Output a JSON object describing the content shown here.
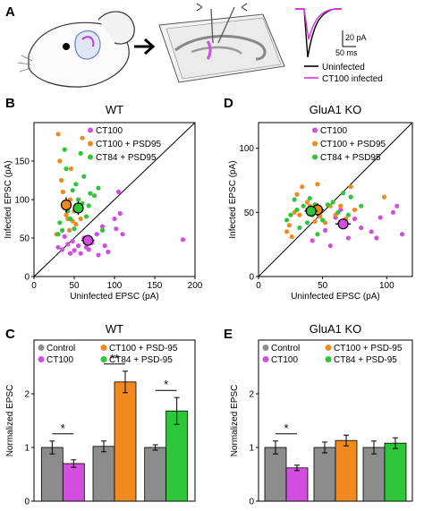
{
  "colors": {
    "ct100": "#d24ee0",
    "ct100_psd95": "#f08a1e",
    "ct84_psd95": "#2ec73a",
    "control": "#8c8c8c",
    "uninfected_trace": "#000000",
    "infected_trace": "#e030e0"
  },
  "panel_a": {
    "letter": "A",
    "arrow_icon": "right-arrow",
    "scale_pa": "20 pA",
    "scale_ms": "50 ms",
    "legend": [
      "Uninfected",
      "CT100 infected"
    ]
  },
  "panel_b": {
    "letter": "B"
  },
  "panel_c": {
    "letter": "C"
  },
  "panel_d": {
    "letter": "D"
  },
  "panel_e": {
    "letter": "E"
  },
  "chart_data": [
    {
      "panel": "B",
      "type": "scatter",
      "title": "WT",
      "xlabel": "Uninfected EPSC (pA)",
      "ylabel": "Infected EPSC (pA)",
      "xlim": [
        0,
        200
      ],
      "ylim": [
        0,
        200
      ],
      "xticks": [
        0,
        50,
        100,
        150,
        200
      ],
      "yticks": [
        0,
        50,
        100,
        150
      ],
      "legend": [
        "CT100",
        "CT100 + PSD95",
        "CT84 + PSD95"
      ],
      "legend_position": "top-left",
      "identity_line": true,
      "series": [
        {
          "name": "CT100",
          "colorKey": "ct100",
          "points": [
            [
              30,
              38
            ],
            [
              35,
              35
            ],
            [
              38,
              52
            ],
            [
              42,
              42
            ],
            [
              45,
              30
            ],
            [
              48,
              46
            ],
            [
              50,
              34
            ],
            [
              55,
              40
            ],
            [
              58,
              30
            ],
            [
              62,
              50
            ],
            [
              65,
              38
            ],
            [
              68,
              35
            ],
            [
              72,
              44
            ],
            [
              78,
              55
            ],
            [
              80,
              28
            ],
            [
              85,
              65
            ],
            [
              88,
              40
            ],
            [
              92,
              32
            ],
            [
              100,
              75
            ],
            [
              102,
              62
            ],
            [
              105,
              110
            ],
            [
              107,
              82
            ],
            [
              110,
              55
            ],
            [
              185,
              48
            ]
          ],
          "mean": [
            67,
            47
          ],
          "xerr": 8,
          "yerr": 4
        },
        {
          "name": "CT100 + PSD95",
          "colorKey": "ct100_psd95",
          "points": [
            [
              28,
              55
            ],
            [
              30,
              185
            ],
            [
              32,
              150
            ],
            [
              34,
              125
            ],
            [
              36,
              110
            ],
            [
              38,
              92
            ],
            [
              40,
              80
            ],
            [
              42,
              75
            ],
            [
              44,
              60
            ],
            [
              45,
              100
            ],
            [
              46,
              140
            ],
            [
              48,
              72
            ],
            [
              50,
              85
            ],
            [
              52,
              68
            ],
            [
              55,
              92
            ],
            [
              58,
              75
            ],
            [
              60,
              180
            ]
          ],
          "mean": [
            40,
            93
          ],
          "xerr": 5,
          "yerr": 10
        },
        {
          "name": "CT84 + PSD95",
          "colorKey": "ct84_psd95",
          "points": [
            [
              30,
              55
            ],
            [
              32,
              70
            ],
            [
              35,
              60
            ],
            [
              38,
              165
            ],
            [
              40,
              140
            ],
            [
              42,
              85
            ],
            [
              45,
              75
            ],
            [
              48,
              112
            ],
            [
              50,
              62
            ],
            [
              52,
              120
            ],
            [
              55,
              100
            ],
            [
              58,
              160
            ],
            [
              60,
              95
            ],
            [
              62,
              130
            ],
            [
              65,
              78
            ],
            [
              68,
              92
            ],
            [
              70,
              108
            ],
            [
              75,
              105
            ],
            [
              80,
              115
            ],
            [
              85,
              60
            ]
          ],
          "mean": [
            55,
            89
          ],
          "xerr": 5,
          "yerr": 9
        }
      ]
    },
    {
      "panel": "D",
      "type": "scatter",
      "title": "GluA1 KO",
      "xlabel": "Uninfected EPSC (pA)",
      "ylabel": "Infected EPSC (pA)",
      "xlim": [
        0,
        120
      ],
      "ylim": [
        0,
        120
      ],
      "xticks": [
        0,
        50,
        100
      ],
      "yticks": [
        0,
        50,
        100
      ],
      "legend": [
        "CT100",
        "CT100 + PSD95",
        "CT84 + PSD95"
      ],
      "legend_position": "top-left",
      "identity_line": true,
      "series": [
        {
          "name": "CT100",
          "colorKey": "ct100",
          "points": [
            [
              32,
              48
            ],
            [
              38,
              52
            ],
            [
              42,
              28
            ],
            [
              52,
              36
            ],
            [
              56,
              24
            ],
            [
              60,
              46
            ],
            [
              64,
              52
            ],
            [
              70,
              30
            ],
            [
              75,
              45
            ],
            [
              80,
              38
            ],
            [
              88,
              35
            ],
            [
              92,
              30
            ],
            [
              95,
              46
            ],
            [
              105,
              50
            ],
            [
              108,
              55
            ],
            [
              112,
              33
            ]
          ],
          "mean": [
            66,
            41
          ],
          "xerr": 6,
          "yerr": 3
        },
        {
          "name": "CT100 + PSD95",
          "colorKey": "ct100_psd95",
          "points": [
            [
              22,
              35
            ],
            [
              24,
              40
            ],
            [
              26,
              31
            ],
            [
              28,
              50
            ],
            [
              30,
              64
            ],
            [
              32,
              48
            ],
            [
              34,
              70
            ],
            [
              38,
              58
            ],
            [
              40,
              55
            ],
            [
              44,
              43
            ],
            [
              46,
              72
            ],
            [
              48,
              47
            ],
            [
              52,
              42
            ],
            [
              56,
              55
            ],
            [
              60,
              48
            ],
            [
              64,
              55
            ],
            [
              68,
              45
            ],
            [
              72,
              70
            ],
            [
              75,
              52
            ],
            [
              98,
              62
            ]
          ],
          "mean": [
            46,
            52
          ],
          "xerr": 5,
          "yerr": 5
        },
        {
          "name": "CT84 + PSD95",
          "colorKey": "ct84_psd95",
          "points": [
            [
              22,
              44
            ],
            [
              25,
              48
            ],
            [
              28,
              60
            ],
            [
              30,
              52
            ],
            [
              32,
              38
            ],
            [
              35,
              55
            ],
            [
              38,
              42
            ],
            [
              40,
              61
            ],
            [
              42,
              48
            ],
            [
              44,
              56
            ],
            [
              46,
              33
            ],
            [
              48,
              50
            ],
            [
              50,
              44
            ],
            [
              54,
              56
            ],
            [
              58,
              58
            ],
            [
              62,
              50
            ],
            [
              66,
              65
            ],
            [
              70,
              48
            ],
            [
              72,
              62
            ],
            [
              80,
              55
            ]
          ],
          "mean": [
            41,
            51
          ],
          "xerr": 5,
          "yerr": 4
        }
      ]
    },
    {
      "panel": "C",
      "type": "bar",
      "title": "WT",
      "ylabel": "Normalized EPSC",
      "ylim": [
        0,
        3
      ],
      "yticks": [
        0,
        1,
        2
      ],
      "legend": [
        "Control",
        "CT100",
        "CT100 + PSD-95",
        "CT84 + PSD-95"
      ],
      "groups": [
        {
          "bars": [
            {
              "name": "Control",
              "colorKey": "control",
              "value": 1.0,
              "err": 0.12
            },
            {
              "name": "CT100",
              "colorKey": "ct100",
              "value": 0.7,
              "err": 0.07
            }
          ],
          "significance": "*"
        },
        {
          "bars": [
            {
              "name": "Control",
              "colorKey": "control",
              "value": 1.02,
              "err": 0.1
            },
            {
              "name": "CT100 + PSD-95",
              "colorKey": "ct100_psd95",
              "value": 2.22,
              "err": 0.2
            }
          ],
          "significance": "**"
        },
        {
          "bars": [
            {
              "name": "Control",
              "colorKey": "control",
              "value": 1.0,
              "err": 0.05
            },
            {
              "name": "CT84 + PSD-95",
              "colorKey": "ct84_psd95",
              "value": 1.68,
              "err": 0.25
            }
          ],
          "significance": "*"
        }
      ]
    },
    {
      "panel": "E",
      "type": "bar",
      "title": "GluA1 KO",
      "ylabel": "Normalized EPSC",
      "ylim": [
        0,
        3
      ],
      "yticks": [
        0,
        1,
        2
      ],
      "legend": [
        "Control",
        "CT100",
        "CT100 + PSD-95",
        "CT84 + PSD-95"
      ],
      "groups": [
        {
          "bars": [
            {
              "name": "Control",
              "colorKey": "control",
              "value": 1.0,
              "err": 0.12
            },
            {
              "name": "CT100",
              "colorKey": "ct100",
              "value": 0.62,
              "err": 0.05
            }
          ],
          "significance": "*"
        },
        {
          "bars": [
            {
              "name": "Control",
              "colorKey": "control",
              "value": 1.0,
              "err": 0.1
            },
            {
              "name": "CT100 + PSD-95",
              "colorKey": "ct100_psd95",
              "value": 1.13,
              "err": 0.1
            }
          ],
          "significance": ""
        },
        {
          "bars": [
            {
              "name": "Control",
              "colorKey": "control",
              "value": 1.0,
              "err": 0.12
            },
            {
              "name": "CT84 + PSD-95",
              "colorKey": "ct84_psd95",
              "value": 1.08,
              "err": 0.1
            }
          ],
          "significance": ""
        }
      ]
    }
  ]
}
